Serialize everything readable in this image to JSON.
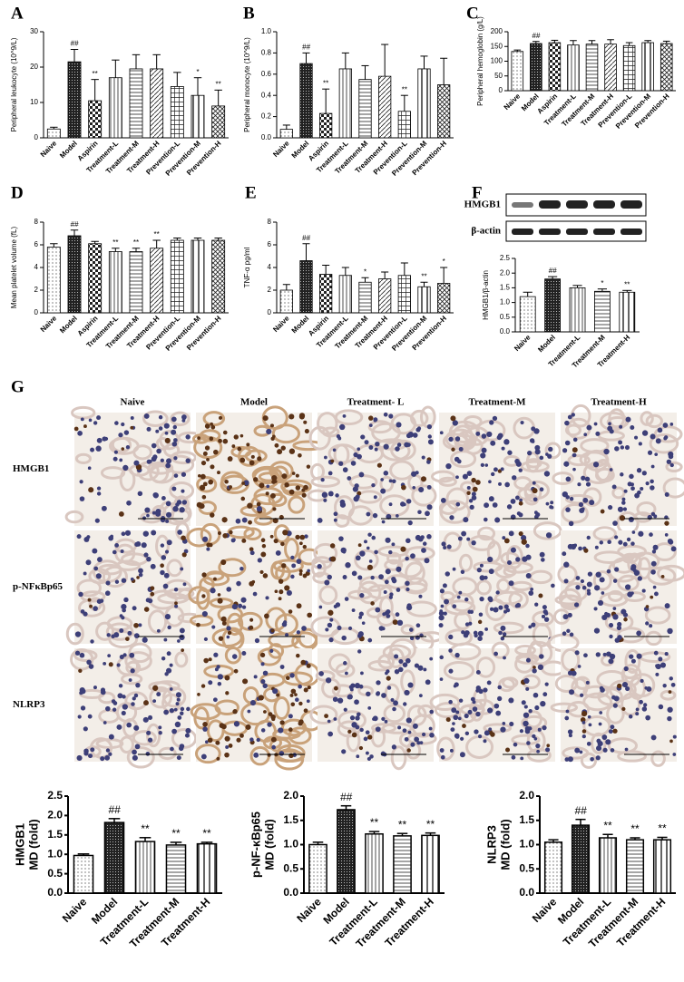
{
  "figure": {
    "panels": [
      "A",
      "B",
      "C",
      "D",
      "E",
      "F",
      "G"
    ],
    "blot_labels": [
      "HMGB1",
      "β-actin"
    ],
    "ihc": {
      "columns": [
        "Naive",
        "Model",
        "Treatment- L",
        "Treatment-M",
        "Treatment-H"
      ],
      "rows": [
        "HMGB1",
        "p-NFκBp65",
        "NLRP3"
      ]
    }
  },
  "chart_data": [
    {
      "type": "bar",
      "ylabel": "Peripheral leukocyte (10^9/L)",
      "categories": [
        "Naive",
        "Model",
        "Aspirin",
        "Treatment-L",
        "Treatment-M",
        "Treatment-H",
        "Prevention-L",
        "Prevention-M",
        "Prevention-H"
      ],
      "values": [
        2.5,
        21.5,
        10.5,
        17,
        19.5,
        19.5,
        14.5,
        12,
        9
      ],
      "errors": [
        0.5,
        3.5,
        6,
        5,
        4,
        4,
        4,
        5,
        4.5
      ],
      "annotations": [
        null,
        "##",
        "**",
        null,
        null,
        null,
        null,
        "*",
        "**"
      ],
      "ylim": [
        0,
        30
      ],
      "yticks": [
        0,
        10,
        20,
        30
      ],
      "color": "#000000"
    },
    {
      "type": "bar",
      "ylabel": "Peripheral monocyte (10^9/L)",
      "categories": [
        "Naive",
        "Model",
        "Aspirin",
        "Treatment-L",
        "Treatment-M",
        "Treatment-H",
        "Prevention-L",
        "Prevention-M",
        "Prevention-H"
      ],
      "values": [
        0.08,
        0.7,
        0.23,
        0.65,
        0.55,
        0.58,
        0.25,
        0.65,
        0.5
      ],
      "errors": [
        0.04,
        0.1,
        0.23,
        0.15,
        0.13,
        0.3,
        0.15,
        0.12,
        0.25
      ],
      "annotations": [
        null,
        "##",
        "**",
        null,
        null,
        null,
        "**",
        null,
        null
      ],
      "ylim": [
        0,
        1
      ],
      "yticks": [
        {
          "value": 0,
          "label": "0.0"
        },
        0.2,
        0.4,
        0.6,
        0.8,
        {
          "value": 1,
          "label": "1.0"
        }
      ],
      "color": "#000000"
    },
    {
      "type": "bar",
      "ylabel": "Peripheral hemoglobin (g/L)",
      "categories": [
        "Naive",
        "Model",
        "Aspirin",
        "Treatment-L",
        "Treatment-M",
        "Treatment-H",
        "Prevention-L",
        "Prevention-M",
        "Prevention-H"
      ],
      "values": [
        133,
        160,
        163,
        155,
        158,
        158,
        153,
        163,
        160
      ],
      "errors": [
        5,
        7,
        8,
        15,
        12,
        15,
        10,
        7,
        8
      ],
      "annotations": [
        null,
        "##",
        null,
        null,
        null,
        null,
        null,
        null,
        null
      ],
      "ylim": [
        0,
        200
      ],
      "yticks": [
        0,
        50,
        100,
        150,
        200
      ],
      "color": "#000000"
    },
    {
      "type": "bar",
      "ylabel": "Mean platelet volume (fL)",
      "categories": [
        "Naive",
        "Model",
        "Aspirin",
        "Treatment-L",
        "Treatment-M",
        "Treatment-H",
        "Prevention-L",
        "Prevention-M",
        "Prevention-H"
      ],
      "values": [
        5.8,
        6.8,
        6.1,
        5.4,
        5.4,
        5.7,
        6.4,
        6.4,
        6.4
      ],
      "errors": [
        0.3,
        0.5,
        0.2,
        0.3,
        0.3,
        0.7,
        0.2,
        0.2,
        0.2
      ],
      "annotations": [
        null,
        "##",
        null,
        "**",
        "**",
        "**",
        null,
        null,
        null
      ],
      "ylim": [
        0,
        8
      ],
      "yticks": [
        0,
        2,
        4,
        6,
        8
      ],
      "color": "#000000"
    },
    {
      "type": "bar",
      "ylabel": "TNF-α pg/ml",
      "categories": [
        "Naive",
        "Model",
        "Aspirin",
        "Treatment-L",
        "Treatment-M",
        "Treatment-H",
        "Prevention-L",
        "Prevention-M",
        "Prevention-H"
      ],
      "values": [
        2,
        4.6,
        3.4,
        3.3,
        2.7,
        3,
        3.3,
        2.3,
        2.6
      ],
      "errors": [
        0.5,
        1.5,
        0.8,
        0.7,
        0.4,
        0.6,
        1.1,
        0.4,
        1.4
      ],
      "annotations": [
        null,
        "##",
        null,
        null,
        "*",
        null,
        null,
        "**",
        "*"
      ],
      "ylim": [
        0,
        8
      ],
      "yticks": [
        0,
        2,
        4,
        6,
        8
      ],
      "color": "#000000"
    },
    {
      "type": "bar",
      "ylabel": "HMGB1/β-actin",
      "categories": [
        "Naive",
        "Model",
        "Treatment-L",
        "Treatment-M",
        "Treatment-H"
      ],
      "values": [
        1.2,
        1.8,
        1.5,
        1.38,
        1.35
      ],
      "errors": [
        0.15,
        0.08,
        0.08,
        0.08,
        0.06
      ],
      "annotations": [
        null,
        "##",
        null,
        "*",
        "**"
      ],
      "ylim": [
        0,
        2.5
      ],
      "yticks": [
        {
          "value": 0,
          "label": "0.0"
        },
        0.5,
        {
          "value": 1,
          "label": "1.0"
        },
        1.5,
        {
          "value": 2,
          "label": "2.0"
        },
        2.5
      ],
      "color": "#000000"
    },
    {
      "type": "bar",
      "ylabel": [
        "HMGB1",
        "MD (fold)"
      ],
      "categories": [
        "Naive",
        "Model",
        "Treatment-L",
        "Treatment-M",
        "Treatment-H"
      ],
      "values": [
        0.97,
        1.82,
        1.33,
        1.24,
        1.27
      ],
      "errors": [
        0.04,
        0.1,
        0.1,
        0.07,
        0.04
      ],
      "annotations": [
        null,
        "##",
        "**",
        "**",
        "**"
      ],
      "ylim": [
        0,
        2.5
      ],
      "yticks": [
        {
          "value": 0,
          "label": "0.0"
        },
        0.5,
        {
          "value": 1,
          "label": "1.0"
        },
        1.5,
        {
          "value": 2,
          "label": "2.0"
        },
        2.5
      ],
      "color": "#000000"
    },
    {
      "type": "bar",
      "ylabel": [
        "p-NF-κBp65",
        "MD (fold)"
      ],
      "categories": [
        "Naive",
        "Model",
        "Treatment-L",
        "Treatment-M",
        "Treatment-H"
      ],
      "values": [
        1,
        1.72,
        1.22,
        1.18,
        1.19
      ],
      "errors": [
        0.05,
        0.08,
        0.05,
        0.05,
        0.05
      ],
      "annotations": [
        null,
        "##",
        "**",
        "**",
        "**"
      ],
      "ylim": [
        0,
        2
      ],
      "yticks": [
        {
          "value": 0,
          "label": "0.0"
        },
        0.5,
        {
          "value": 1,
          "label": "1.0"
        },
        1.5,
        {
          "value": 2,
          "label": "2.0"
        }
      ],
      "color": "#000000"
    },
    {
      "type": "bar",
      "ylabel": [
        "NLRP3",
        "MD (fold)"
      ],
      "categories": [
        "Naive",
        "Model",
        "Treatment-L",
        "Treatment-M",
        "Treatment-H"
      ],
      "values": [
        1.05,
        1.4,
        1.14,
        1.1,
        1.1
      ],
      "errors": [
        0.05,
        0.12,
        0.07,
        0.04,
        0.05
      ],
      "annotations": [
        null,
        "##",
        "**",
        "**",
        "**"
      ],
      "ylim": [
        0,
        2
      ],
      "yticks": [
        {
          "value": 0,
          "label": "0.0"
        },
        0.5,
        {
          "value": 1,
          "label": "1.0"
        },
        1.5,
        {
          "value": 2,
          "label": "2.0"
        }
      ],
      "color": "#000000"
    }
  ]
}
